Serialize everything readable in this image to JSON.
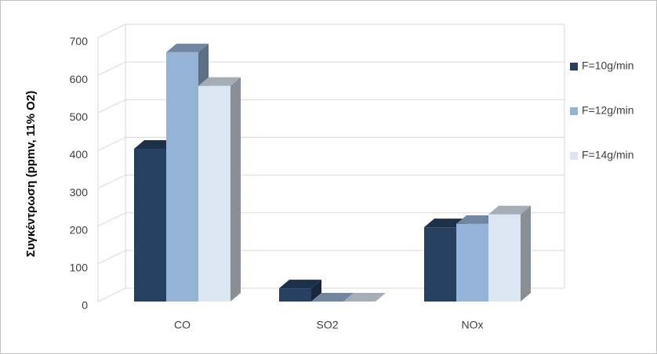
{
  "chart_data": {
    "type": "bar3d",
    "y_label": "Συγκέντρωση (ppmv, 11% O2)",
    "categories": [
      "CO",
      "SO2",
      "NOx"
    ],
    "series": [
      {
        "name": "F=10g/min",
        "color": "#254061",
        "values": [
          405,
          35,
          197
        ]
      },
      {
        "name": "F=12g/min",
        "color": "#95b3d7",
        "values": [
          661,
          0,
          206
        ]
      },
      {
        "name": "F=14g/min",
        "color": "#dce6f2",
        "values": [
          572,
          0,
          231
        ]
      }
    ],
    "ylim": [
      0,
      700
    ],
    "yticks": [
      0,
      100,
      200,
      300,
      400,
      500,
      600,
      700
    ],
    "grid": true,
    "legend": "right"
  }
}
